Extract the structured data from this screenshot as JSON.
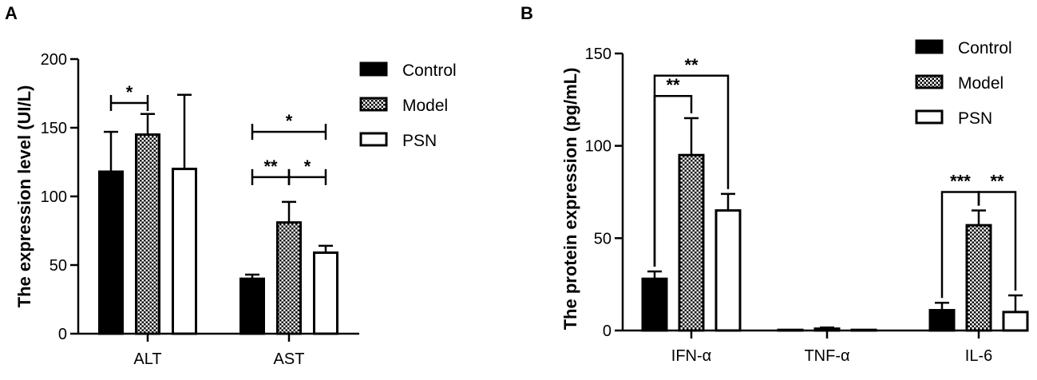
{
  "colors": {
    "ink": "#000000",
    "background": "#ffffff"
  },
  "patterns": {
    "Control": "solid-black",
    "Model": "checker",
    "PSN": "white"
  },
  "chart_data": [
    {
      "panel": "A",
      "type": "bar",
      "ylabel": "The expression level (UI/L)",
      "xlabel": "",
      "ylim": [
        0,
        200
      ],
      "yticks": [
        0,
        50,
        100,
        150,
        200
      ],
      "categories": [
        "ALT",
        "AST"
      ],
      "series": [
        {
          "name": "Control",
          "values": [
            118,
            40
          ],
          "errors": [
            29,
            3
          ]
        },
        {
          "name": "Model",
          "values": [
            145,
            81
          ],
          "errors": [
            15,
            15
          ]
        },
        {
          "name": "PSN",
          "values": [
            120,
            59
          ],
          "errors": [
            54,
            5
          ]
        }
      ],
      "legend": {
        "position": "top-right",
        "entries": [
          "Control",
          "Model",
          "PSN"
        ]
      },
      "significance": [
        {
          "category": 0,
          "from": 0,
          "to": 1,
          "level": 168,
          "label": "*"
        },
        {
          "category": 1,
          "from": 0,
          "to": 1,
          "level": 114,
          "label": "**"
        },
        {
          "category": 1,
          "from": 1,
          "to": 2,
          "level": 114,
          "label": "*"
        },
        {
          "category": 1,
          "from": 0,
          "to": 2,
          "level": 147,
          "label": "*"
        }
      ]
    },
    {
      "panel": "B",
      "type": "bar",
      "ylabel": "The protein expression (pg/mL)",
      "xlabel": "",
      "ylim": [
        0,
        150
      ],
      "yticks": [
        0,
        50,
        100,
        150
      ],
      "categories": [
        "IFN-α",
        "TNF-α",
        "IL-6"
      ],
      "series": [
        {
          "name": "Control",
          "values": [
            28,
            0.3,
            11
          ],
          "errors": [
            4,
            0,
            4
          ]
        },
        {
          "name": "Model",
          "values": [
            95,
            1,
            57
          ],
          "errors": [
            20,
            0.6,
            8
          ]
        },
        {
          "name": "PSN",
          "values": [
            65,
            0.3,
            10
          ],
          "errors": [
            9,
            0,
            9
          ]
        }
      ],
      "legend": {
        "position": "top-right",
        "entries": [
          "Control",
          "Model",
          "PSN"
        ]
      },
      "significance": [
        {
          "category": 0,
          "from": 0,
          "to": 1,
          "level": 127,
          "label": "**",
          "drop_to_bars": true
        },
        {
          "category": 0,
          "from": 0,
          "to": 2,
          "level": 138,
          "label": "**",
          "drop_to_bars": true
        },
        {
          "category": 2,
          "from": 0,
          "to": 1,
          "level": 75,
          "label": "***",
          "drop_to_bars": true
        },
        {
          "category": 2,
          "from": 1,
          "to": 2,
          "level": 75,
          "label": "**",
          "drop_to_bars": true
        }
      ]
    }
  ]
}
